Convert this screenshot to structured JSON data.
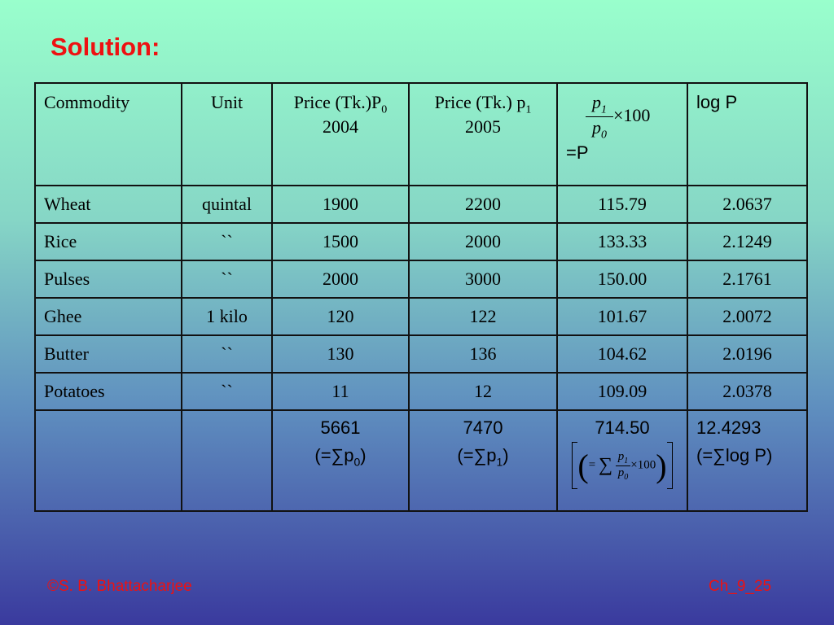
{
  "title": "Solution:",
  "table": {
    "header": {
      "commodity": "Commodity",
      "unit": "Unit",
      "price0": {
        "text": "Price (Tk.)P",
        "sub": "0",
        "year": "2004"
      },
      "price1": {
        "text": "Price (Tk.) p",
        "sub": "1",
        "year": "2005"
      },
      "relative": {
        "numerator": "p",
        "numerator_sub": "1",
        "denominator": "p",
        "denominator_sub": "0",
        "multiplier": "×100",
        "result": "=P"
      },
      "log": "log P"
    },
    "rows": [
      [
        "Wheat",
        "quintal",
        "1900",
        "2200",
        "115.79",
        "2.0637"
      ],
      [
        "Rice",
        "``",
        "1500",
        "2000",
        "133.33",
        "2.1249"
      ],
      [
        "Pulses",
        "``",
        "2000",
        "3000",
        "150.00",
        "2.1761"
      ],
      [
        "Ghee",
        "1 kilo",
        "120",
        "122",
        "101.67",
        "2.0072"
      ],
      [
        "Butter",
        "``",
        "130",
        "136",
        "104.62",
        "2.0196"
      ],
      [
        "Potatoes",
        "``",
        "11",
        "12",
        "109.09",
        "2.0378"
      ]
    ],
    "totals": {
      "price0": {
        "value": "5661",
        "prefix": "(=∑p",
        "sub": "0",
        "suffix": ")"
      },
      "price1": {
        "value": "7470",
        "prefix": "(=∑p",
        "sub": "1",
        "suffix": ")"
      },
      "relative": {
        "value": "714.50",
        "equals": "=",
        "sigma": "∑",
        "numerator": "p",
        "numerator_sub": "1",
        "denominator": "p",
        "denominator_sub": "0",
        "multiplier": "×100"
      },
      "log": {
        "value": "12.4293",
        "label": "(=∑log P)"
      }
    }
  },
  "footer": {
    "author": "©S. B. Bhattacharjee",
    "slide": "Ch_9_25"
  }
}
